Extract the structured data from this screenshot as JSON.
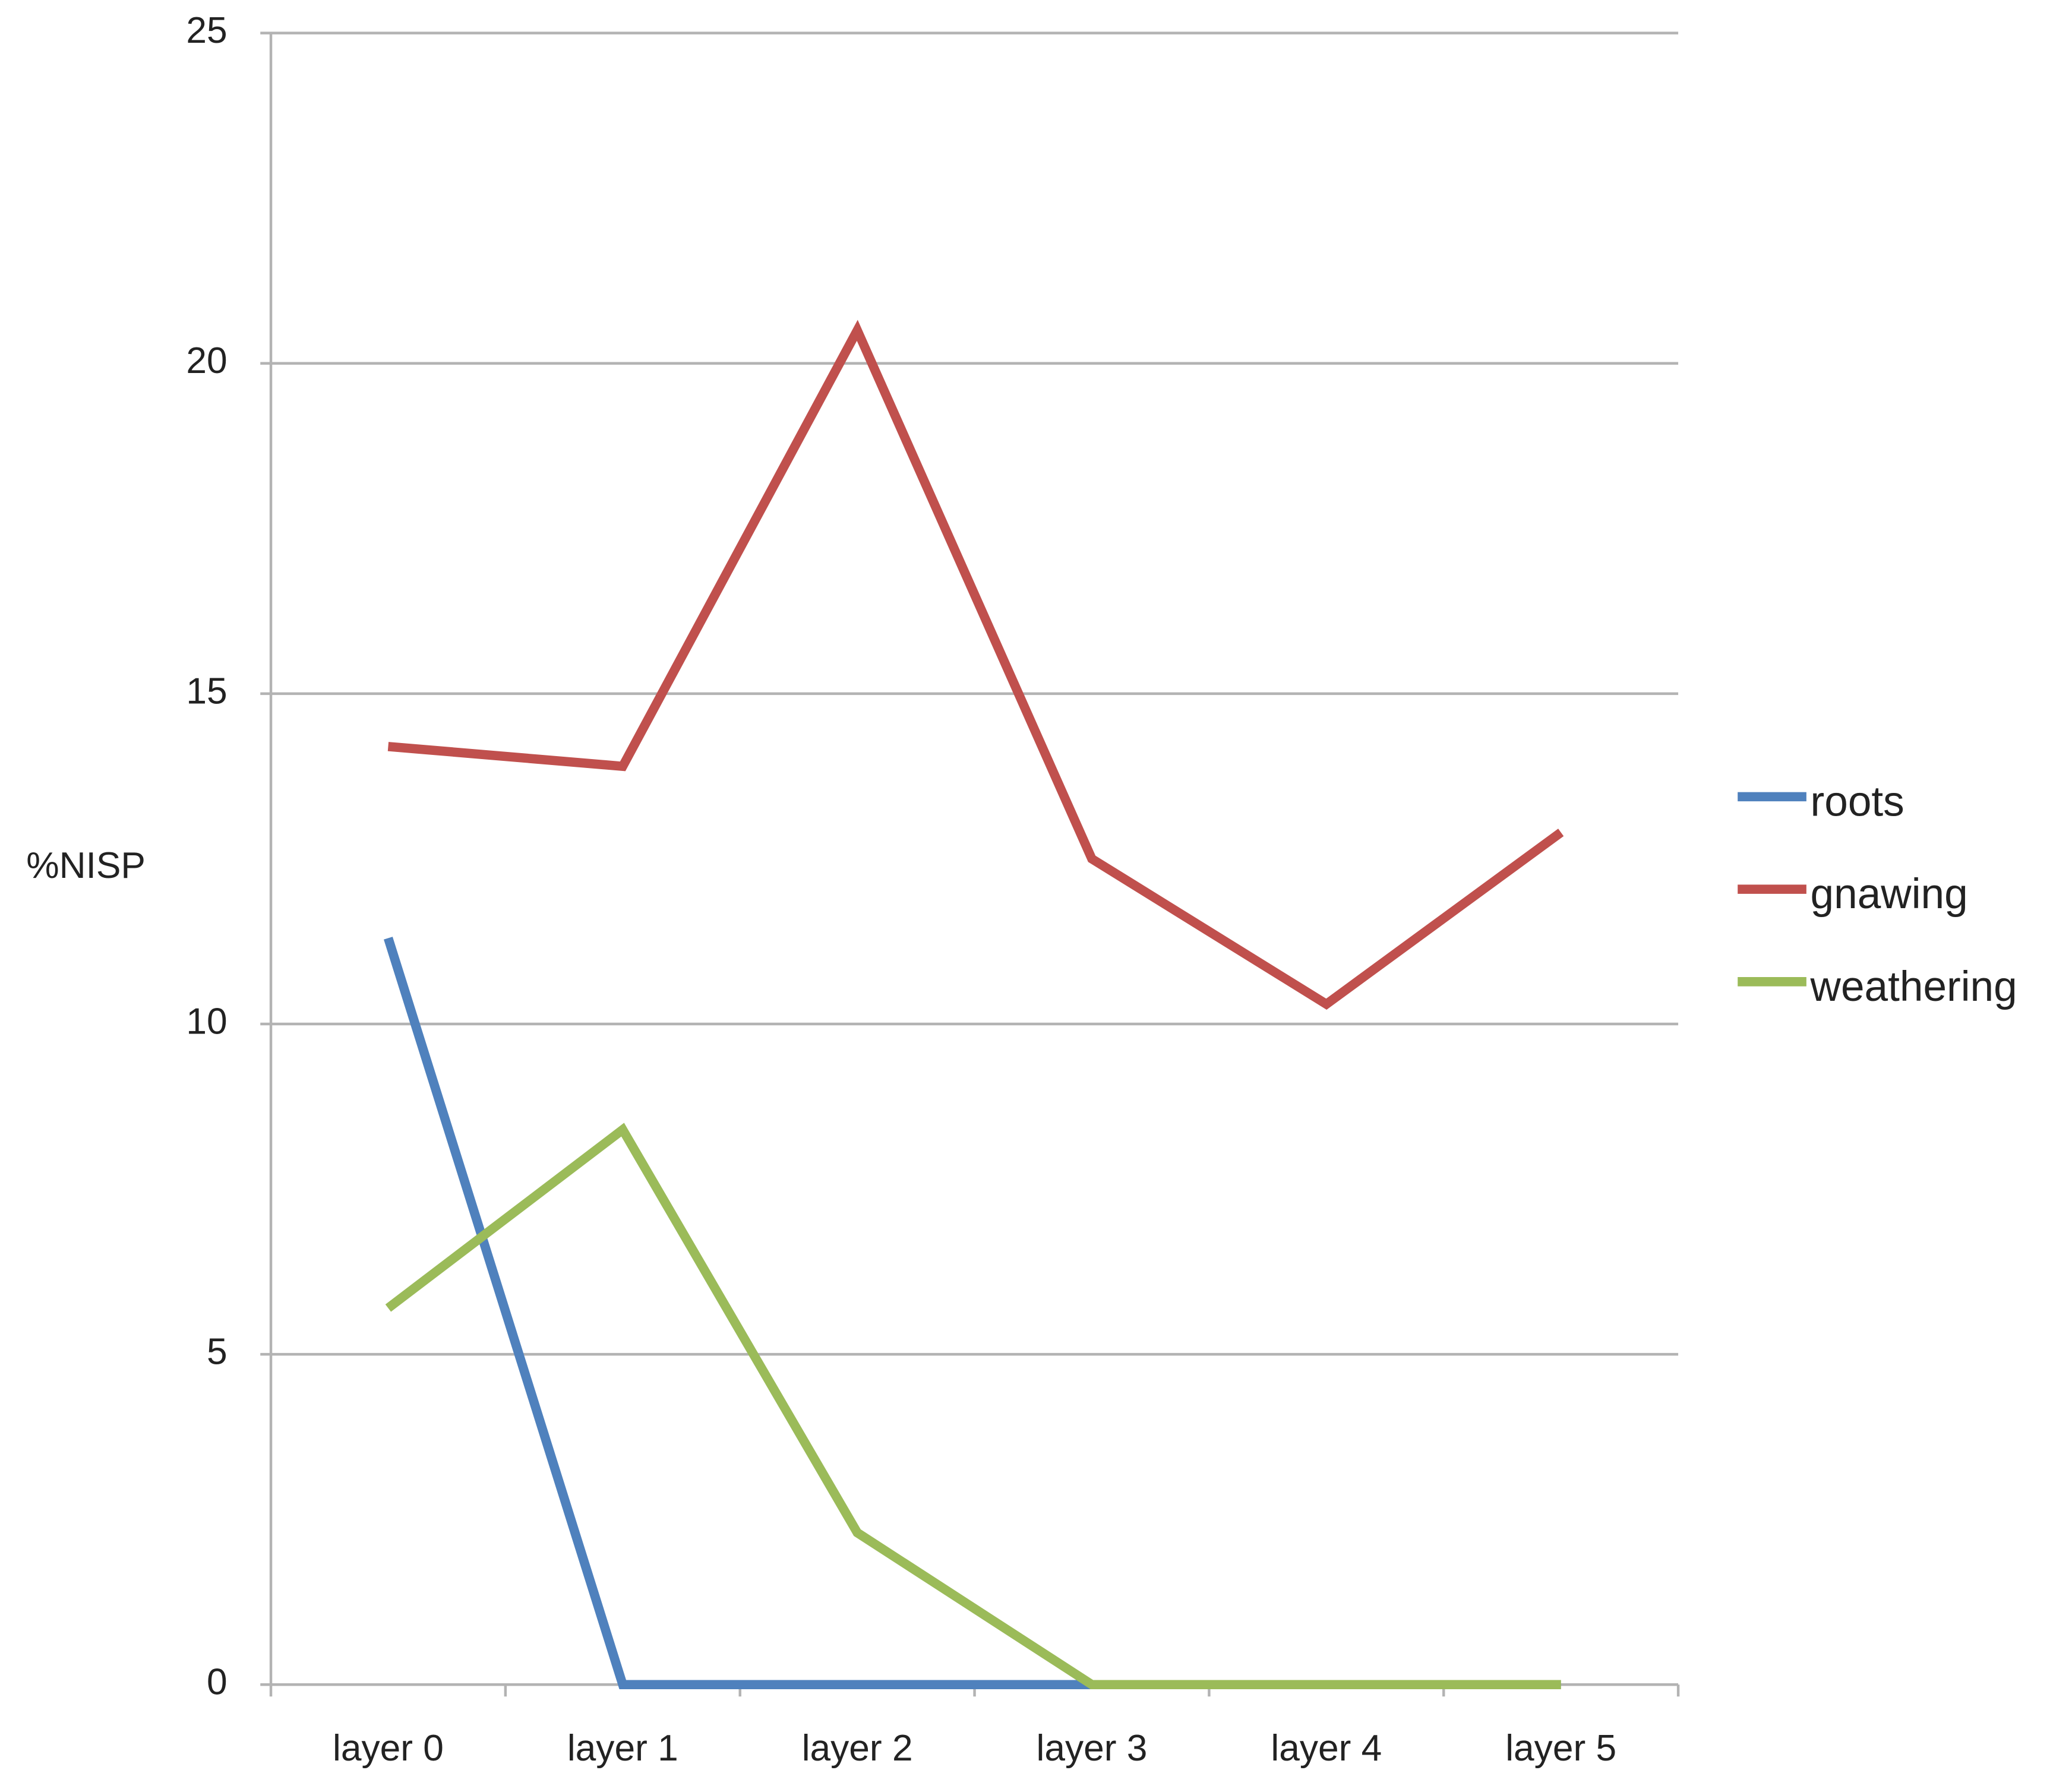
{
  "chart_data": {
    "type": "line",
    "y_label": "%NISP",
    "categories": [
      "layer 0",
      "layer 1",
      "layer 2",
      "layer 3",
      "layer 4",
      "layer 5"
    ],
    "series": [
      {
        "name": "roots",
        "color": "#4f81bd",
        "values": [
          11.3,
          0,
          0,
          0,
          0,
          0
        ]
      },
      {
        "name": "gnawing",
        "color": "#c0504d",
        "values": [
          14.2,
          13.9,
          20.5,
          12.5,
          10.3,
          12.9
        ]
      },
      {
        "name": "weathering",
        "color": "#9bbb59",
        "values": [
          5.7,
          8.4,
          2.3,
          0,
          0,
          0
        ]
      }
    ],
    "ylim": [
      0,
      25
    ],
    "yticks": [
      0,
      5,
      10,
      15,
      20,
      25
    ],
    "grid": true,
    "legend": "right"
  }
}
